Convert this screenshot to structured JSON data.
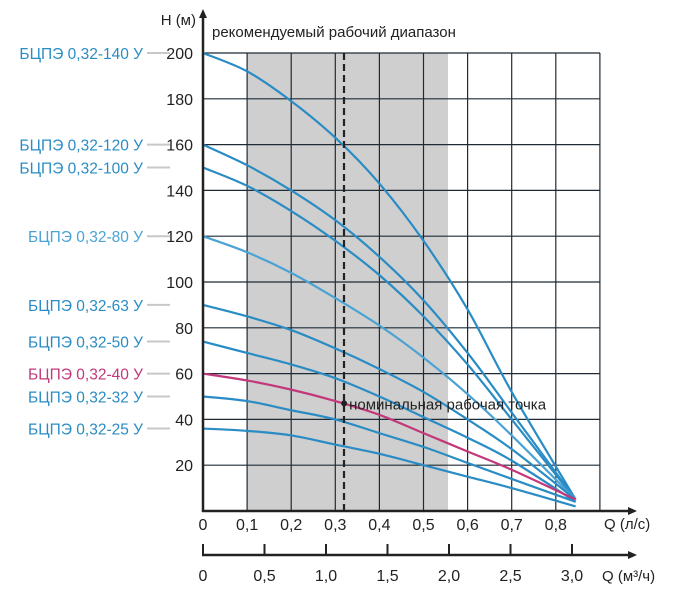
{
  "chart_data": {
    "type": "line",
    "title": "рекомендуемый рабочий диапазон",
    "ylabel": "H (м)",
    "xlabel": "Q (л/с)",
    "x2label": "Q (м³/ч)",
    "xlim": [
      0,
      0.9
    ],
    "ylim": [
      0,
      200
    ],
    "x_ticks": [
      "0",
      "0,1",
      "0,2",
      "0,3",
      "0,4",
      "0,5",
      "0,6",
      "0,7",
      "0,8"
    ],
    "x_tick_values": [
      0,
      0.1,
      0.2,
      0.3,
      0.4,
      0.5,
      0.6,
      0.7,
      0.8
    ],
    "x2_ticks": [
      "0",
      "0,5",
      "1,0",
      "1,5",
      "2,0",
      "2,5",
      "3,0"
    ],
    "x2_tick_values": [
      0,
      0.5,
      1.0,
      1.5,
      2.0,
      2.5,
      3.0
    ],
    "y_ticks": [
      "20",
      "40",
      "60",
      "80",
      "100",
      "120",
      "140",
      "160",
      "180",
      "200"
    ],
    "y_tick_values": [
      20,
      40,
      60,
      80,
      100,
      120,
      140,
      160,
      180,
      200
    ],
    "grid": true,
    "recommended_range": [
      0.1,
      0.555
    ],
    "nominal_point": {
      "q": 0.32,
      "h": 47,
      "label": "номинальная рабочая точка"
    },
    "colors": {
      "blue": "#2a8cc4",
      "light_blue": "#4aa3d4",
      "magenta": "#c2387a",
      "shade": "#cfcfcf",
      "grid": "#1e2b36"
    },
    "q": [
      0,
      0.1,
      0.2,
      0.3,
      0.4,
      0.5,
      0.6,
      0.7,
      0.845
    ],
    "series": [
      {
        "name": "БЦПЭ 0,32-140 У",
        "color": "#2a8cc4",
        "values": [
          200,
          192,
          179,
          163,
          143,
          118,
          88,
          52,
          5
        ]
      },
      {
        "name": "БЦПЭ 0,32-120 У",
        "color": "#2a8cc4",
        "values": [
          160,
          151,
          140,
          127,
          111,
          92,
          69,
          43,
          5
        ]
      },
      {
        "name": "БЦПЭ 0,32-100 У",
        "color": "#2a8cc4",
        "values": [
          150,
          142,
          131,
          118,
          103,
          85,
          64,
          40,
          5
        ]
      },
      {
        "name": "БЦПЭ 0,32-80 У",
        "color": "#4aa3d4",
        "values": [
          120,
          113,
          104,
          93,
          81,
          67,
          51,
          33,
          5
        ]
      },
      {
        "name": "БЦПЭ 0,32-63 У",
        "color": "#2a8cc4",
        "values": [
          90,
          85,
          79,
          71,
          62,
          52,
          40,
          27,
          5
        ]
      },
      {
        "name": "БЦПЭ 0,32-50 У",
        "color": "#2a8cc4",
        "values": [
          74,
          69,
          64,
          58,
          50,
          41,
          32,
          22,
          4
        ]
      },
      {
        "name": "БЦПЭ 0,32-40 У",
        "color": "#c2387a",
        "values": [
          60,
          57,
          53,
          48,
          42,
          34,
          26,
          18,
          5
        ]
      },
      {
        "name": "БЦПЭ 0,32-32 У",
        "color": "#2a8cc4",
        "values": [
          50,
          48,
          44,
          40,
          34,
          28,
          21,
          14,
          4
        ]
      },
      {
        "name": "БЦПЭ 0,32-25 У",
        "color": "#2a8cc4",
        "values": [
          36,
          35,
          33,
          29,
          25,
          20,
          15,
          10,
          2
        ]
      }
    ]
  }
}
